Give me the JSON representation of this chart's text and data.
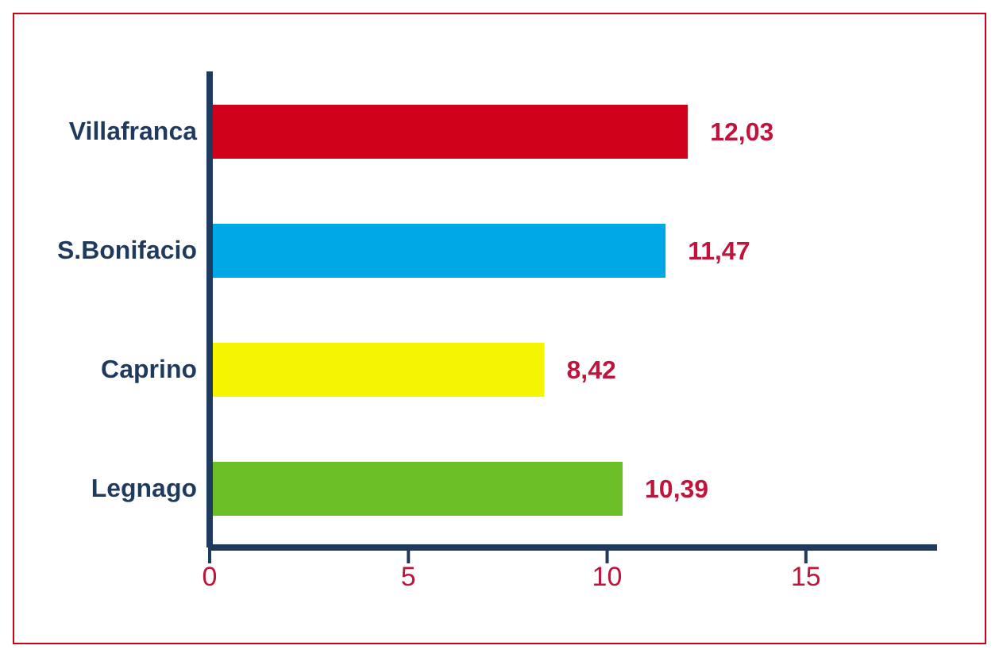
{
  "chart_data": {
    "type": "bar",
    "orientation": "horizontal",
    "categories": [
      "Villafranca",
      "S.Bonifacio",
      "Caprino",
      "Legnago"
    ],
    "values": [
      12.03,
      11.47,
      8.42,
      10.39
    ],
    "colors": [
      "#d0021b",
      "#00a9e6",
      "#f5f500",
      "#6cbf26"
    ],
    "value_labels": [
      "12,03",
      "11,47",
      "8,42",
      "10,39"
    ],
    "xlim": [
      0,
      18.3
    ],
    "xticks": [
      0,
      5,
      10,
      15
    ],
    "grid": false,
    "legend": false
  }
}
